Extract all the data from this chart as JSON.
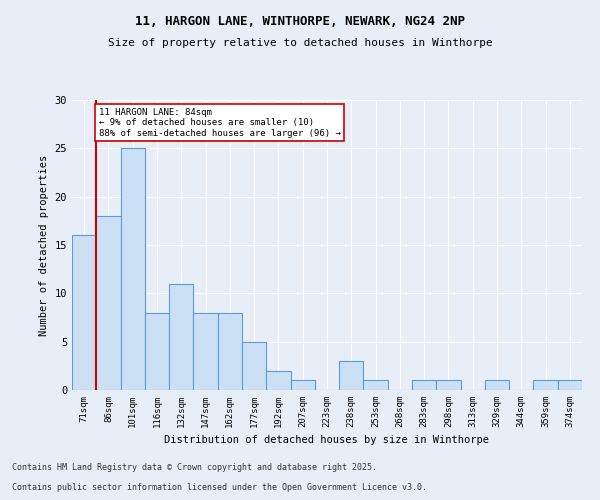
{
  "title1": "11, HARGON LANE, WINTHORPE, NEWARK, NG24 2NP",
  "title2": "Size of property relative to detached houses in Winthorpe",
  "xlabel": "Distribution of detached houses by size in Winthorpe",
  "ylabel": "Number of detached properties",
  "categories": [
    "71sqm",
    "86sqm",
    "101sqm",
    "116sqm",
    "132sqm",
    "147sqm",
    "162sqm",
    "177sqm",
    "192sqm",
    "207sqm",
    "223sqm",
    "238sqm",
    "253sqm",
    "268sqm",
    "283sqm",
    "298sqm",
    "313sqm",
    "329sqm",
    "344sqm",
    "359sqm",
    "374sqm"
  ],
  "values": [
    16,
    18,
    25,
    8,
    11,
    8,
    8,
    5,
    2,
    1,
    0,
    3,
    1,
    0,
    1,
    1,
    0,
    1,
    0,
    1,
    1
  ],
  "bar_color": "#cce0f5",
  "bar_edge_color": "#5b9bd5",
  "vline_color": "#cc0000",
  "annotation_text": "11 HARGON LANE: 84sqm\n← 9% of detached houses are smaller (10)\n88% of semi-detached houses are larger (96) →",
  "annotation_box_color": "#ffffff",
  "annotation_box_edge": "#cc0000",
  "ylim": [
    0,
    30
  ],
  "yticks": [
    0,
    5,
    10,
    15,
    20,
    25,
    30
  ],
  "footnote1": "Contains HM Land Registry data © Crown copyright and database right 2025.",
  "footnote2": "Contains public sector information licensed under the Open Government Licence v3.0.",
  "bg_color": "#e8eef8",
  "plot_bg_color": "#e8eef8"
}
